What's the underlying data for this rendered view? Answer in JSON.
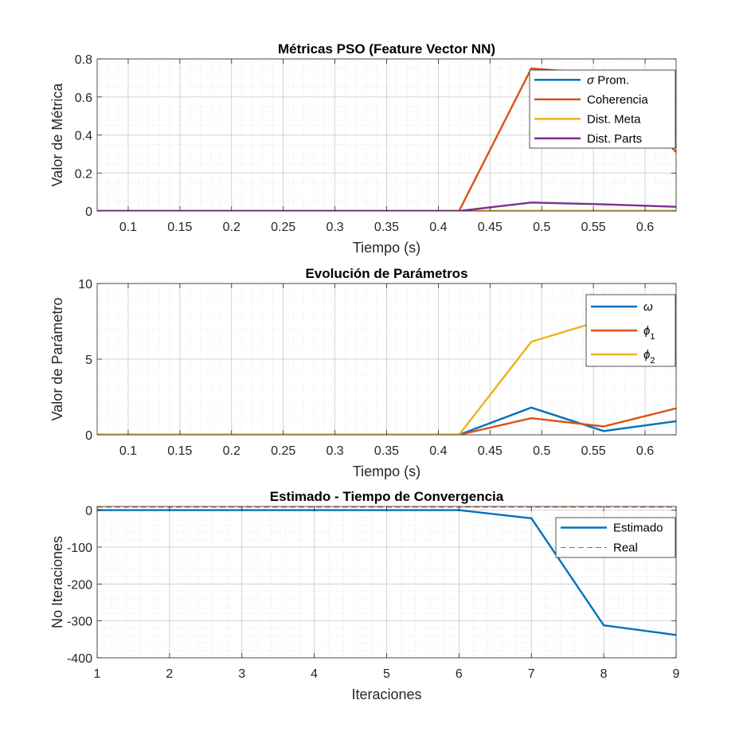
{
  "chart_data": [
    {
      "type": "line",
      "title": "Métricas PSO (Feature Vector NN)",
      "xlabel": "Tiempo (s)",
      "ylabel": "Valor de Métrica",
      "xlim": [
        0.07,
        0.63
      ],
      "ylim": [
        0,
        0.8
      ],
      "xticks": [
        "0.1",
        "0.15",
        "0.2",
        "0.25",
        "0.3",
        "0.35",
        "0.4",
        "0.45",
        "0.5",
        "0.55",
        "0.6"
      ],
      "yticks": [
        "0",
        "0.2",
        "0.4",
        "0.6",
        "0.8"
      ],
      "grid": true,
      "minor_grid": true,
      "legend_position": "top-right",
      "series": [
        {
          "name": "σ Prom.",
          "label_parts": [
            {
              "t": "σ",
              "italic": true
            },
            {
              "t": " Prom."
            }
          ],
          "color": "#0072BD",
          "x": [
            0.07,
            0.42,
            0.49,
            0.56,
            0.63
          ],
          "y": [
            0,
            0,
            0,
            0,
            0
          ]
        },
        {
          "name": "Coherencia",
          "label_parts": [
            {
              "t": "Coherencia"
            }
          ],
          "color": "#D95319",
          "x": [
            0.07,
            0.42,
            0.49,
            0.56,
            0.63
          ],
          "y": [
            0,
            0,
            0.75,
            0.72,
            0.31
          ]
        },
        {
          "name": "Dist. Meta",
          "label_parts": [
            {
              "t": "Dist. Meta"
            }
          ],
          "color": "#EDB120",
          "x": [
            0.07,
            0.42,
            0.49,
            0.56,
            0.63
          ],
          "y": [
            0,
            0,
            0,
            0,
            0
          ]
        },
        {
          "name": "Dist. Parts",
          "label_parts": [
            {
              "t": "Dist. Parts"
            }
          ],
          "color": "#7E2F8E",
          "x": [
            0.07,
            0.42,
            0.49,
            0.56,
            0.63
          ],
          "y": [
            0,
            0,
            0.045,
            0.035,
            0.022
          ]
        }
      ]
    },
    {
      "type": "line",
      "title": "Evolución de Parámetros",
      "xlabel": "Tiempo (s)",
      "ylabel": "Valor de Parámetro",
      "xlim": [
        0.07,
        0.63
      ],
      "ylim": [
        0,
        10
      ],
      "xticks": [
        "0.1",
        "0.15",
        "0.2",
        "0.25",
        "0.3",
        "0.35",
        "0.4",
        "0.45",
        "0.5",
        "0.55",
        "0.6"
      ],
      "yticks": [
        "0",
        "5",
        "10"
      ],
      "grid": true,
      "minor_grid": true,
      "legend_position": "top-right",
      "series": [
        {
          "name": "ω",
          "label_parts": [
            {
              "t": "ω",
              "italic": true
            }
          ],
          "color": "#0072BD",
          "x": [
            0.07,
            0.42,
            0.49,
            0.56,
            0.63
          ],
          "y": [
            0,
            0,
            1.8,
            0.25,
            0.9
          ]
        },
        {
          "name": "ϕ1",
          "label_parts": [
            {
              "t": "ϕ",
              "italic": true
            },
            {
              "t": "1",
              "sub": true
            }
          ],
          "color": "#D95319",
          "x": [
            0.07,
            0.42,
            0.49,
            0.56,
            0.63
          ],
          "y": [
            0,
            0,
            1.1,
            0.55,
            1.75
          ]
        },
        {
          "name": "ϕ2",
          "label_parts": [
            {
              "t": "ϕ",
              "italic": true
            },
            {
              "t": "2",
              "sub": true
            }
          ],
          "color": "#EDB120",
          "x": [
            0.07,
            0.42,
            0.49,
            0.56,
            0.63
          ],
          "y": [
            0,
            0,
            6.15,
            7.6,
            8.8
          ]
        }
      ]
    },
    {
      "type": "line",
      "title": "Estimado - Tiempo de Convergencia",
      "xlabel": "Iteraciones",
      "ylabel": "No Iteraciones",
      "xlim": [
        1,
        9
      ],
      "ylim": [
        -400,
        10
      ],
      "xticks": [
        "1",
        "2",
        "3",
        "4",
        "5",
        "6",
        "7",
        "8",
        "9"
      ],
      "yticks": [
        "-400",
        "-300",
        "-200",
        "-100",
        "0"
      ],
      "grid": true,
      "minor_grid": true,
      "legend_position": "top-right",
      "series": [
        {
          "name": "Estimado",
          "label_parts": [
            {
              "t": "Estimado"
            }
          ],
          "color": "#0072BD",
          "x": [
            1,
            2,
            3,
            4,
            5,
            6,
            7,
            8,
            9
          ],
          "y": [
            0,
            0,
            0,
            0,
            0,
            0,
            -22,
            -312,
            -338
          ]
        },
        {
          "name": "Real",
          "label_parts": [
            {
              "t": "Real"
            }
          ],
          "color": "#D95319",
          "dashed": true,
          "x": [
            1,
            9
          ],
          "y": [
            8,
            8
          ]
        }
      ]
    }
  ]
}
